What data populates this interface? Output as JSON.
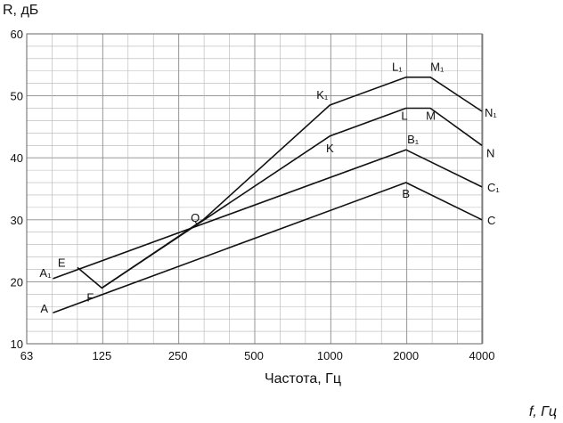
{
  "chart_data": {
    "type": "line",
    "ylabel": "R, дБ",
    "xlabel": "Частота, Гц",
    "xlabel_secondary": "f, Гц",
    "x_scale": "log2",
    "xlim": [
      63,
      4000
    ],
    "ylim": [
      10,
      60
    ],
    "x_ticks": [
      63,
      125,
      250,
      500,
      1000,
      2000,
      4000
    ],
    "y_ticks": [
      10,
      20,
      30,
      40,
      50,
      60
    ],
    "grid": true,
    "series": [
      {
        "points": [
          {
            "x": 80,
            "y": 15,
            "label": "A"
          },
          {
            "x": 2000,
            "y": 36,
            "label": "B"
          },
          {
            "x": 4000,
            "y": 30,
            "label": "C"
          }
        ]
      },
      {
        "points": [
          {
            "x": 80,
            "y": 20.5,
            "label": "A₁"
          },
          {
            "x": 2000,
            "y": 41.3,
            "label": "B₁"
          },
          {
            "x": 4000,
            "y": 35.3,
            "label": "C₁"
          }
        ]
      },
      {
        "points": [
          {
            "x": 100,
            "y": 22.3,
            "label": "E"
          },
          {
            "x": 125,
            "y": 19,
            "label": "F"
          },
          {
            "x": 1000,
            "y": 43.5,
            "label": "K"
          },
          {
            "x": 2000,
            "y": 48,
            "label": "L"
          },
          {
            "x": 2500,
            "y": 48,
            "label": "M"
          },
          {
            "x": 4000,
            "y": 42,
            "label": "N"
          }
        ]
      },
      {
        "points": [
          {
            "x": 125,
            "y": 19,
            "label": ""
          },
          {
            "x": 315,
            "y": 30,
            "label": "Q"
          },
          {
            "x": 1000,
            "y": 48.5,
            "label": "K₁"
          },
          {
            "x": 2000,
            "y": 53,
            "label": "L₁"
          },
          {
            "x": 2500,
            "y": 53,
            "label": "M₁"
          },
          {
            "x": 4000,
            "y": 47.5,
            "label": "N₁"
          }
        ]
      }
    ]
  }
}
